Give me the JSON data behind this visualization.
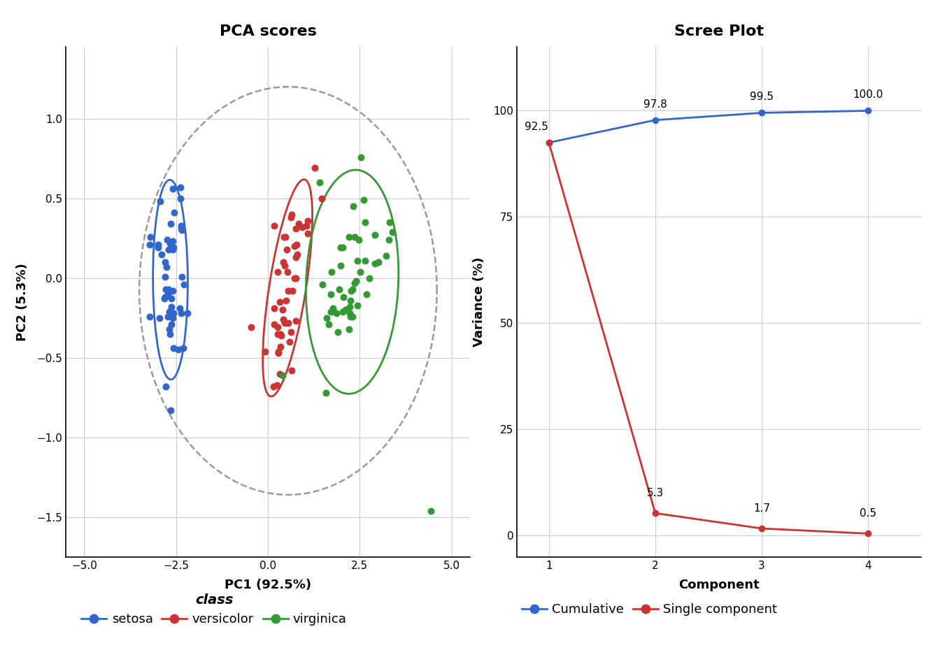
{
  "pca_title": "PCA scores",
  "scree_title": "Scree Plot",
  "pca_xlabel": "PC1 (92.5%)",
  "pca_ylabel": "PC2 (5.3%)",
  "scree_xlabel": "Component",
  "scree_ylabel": "Variance (%)",
  "pca_xlim": [
    -5.5,
    5.5
  ],
  "pca_ylim": [
    -1.75,
    1.45
  ],
  "scree_xlim": [
    0.7,
    4.5
  ],
  "scree_ylim": [
    -5,
    115
  ],
  "class_colors": {
    "setosa": "#3366CC",
    "versicolor": "#CC3333",
    "virginica": "#339933"
  },
  "cumulative": [
    92.5,
    97.8,
    99.5,
    100.0
  ],
  "single": [
    92.5,
    5.3,
    1.7,
    0.5
  ],
  "components": [
    1,
    2,
    3,
    4
  ],
  "cumulative_color": "#3366CC",
  "single_color": "#CC3333",
  "scree_yticks": [
    0,
    25,
    50,
    75,
    100
  ],
  "background_color": "#ffffff",
  "grid_color": "#cccccc",
  "setosa_points_x": [
    -2.68,
    -2.71,
    -2.89,
    -2.37,
    -2.78,
    -2.68,
    -2.79,
    -2.57,
    -2.98,
    -2.93,
    -2.4,
    -2.63,
    -2.82,
    -3.22,
    -2.98,
    -2.37,
    -2.67,
    -2.67,
    -2.3,
    -2.63,
    -2.35,
    -2.74,
    -3.21,
    -2.19,
    -2.58,
    -2.44,
    -2.58,
    -2.57,
    -2.55,
    -2.8,
    -2.58,
    -2.37,
    -2.59,
    -2.38,
    -2.7,
    -2.28,
    -2.34,
    -2.77,
    -2.96,
    -2.59,
    -2.64,
    -3.2,
    -2.64,
    -2.38,
    -2.62,
    -2.79,
    -2.57,
    -2.73,
    -2.78,
    -2.73
  ],
  "setosa_points_y": [
    -0.32,
    0.18,
    0.15,
    0.31,
    -0.07,
    -0.21,
    0.01,
    -0.44,
    0.19,
    0.48,
    -0.19,
    -0.29,
    -0.13,
    -0.24,
    0.21,
    -0.22,
    -0.35,
    0.22,
    -0.44,
    -0.13,
    0.01,
    0.24,
    0.21,
    -0.22,
    0.18,
    -0.45,
    -0.08,
    -0.22,
    0.41,
    -0.12,
    -0.25,
    0.33,
    0.56,
    0.5,
    -0.07,
    -0.04,
    0.3,
    0.07,
    -0.25,
    0.23,
    0.34,
    0.26,
    -0.83,
    0.57,
    -0.18,
    0.1,
    0.19,
    -0.1,
    -0.68,
    -0.24
  ],
  "versicolor_points_x": [
    1.28,
    0.93,
    1.46,
    0.18,
    1.08,
    0.64,
    1.09,
    -0.45,
    1.04,
    0.73,
    0.59,
    0.49,
    0.77,
    0.63,
    0.36,
    0.32,
    0.66,
    0.28,
    0.8,
    0.27,
    0.56,
    0.55,
    0.83,
    0.73,
    0.39,
    0.16,
    0.53,
    0.76,
    0.51,
    0.26,
    0.17,
    0.32,
    0.17,
    0.45,
    0.77,
    0.27,
    0.24,
    0.78,
    0.46,
    0.42,
    -0.08,
    0.63,
    0.47,
    0.28,
    0.35,
    0.34,
    0.64,
    0.77,
    0.41,
    0.43
  ],
  "versicolor_points_y": [
    0.69,
    0.32,
    0.5,
    -0.19,
    0.36,
    -0.58,
    0.28,
    -0.31,
    0.33,
    0.2,
    -0.4,
    -0.14,
    0.0,
    -0.34,
    -0.36,
    -0.6,
    -0.08,
    -0.47,
    0.15,
    -0.35,
    -0.28,
    -0.08,
    0.34,
    0.0,
    -0.2,
    -0.68,
    0.04,
    -0.27,
    0.18,
    0.04,
    -0.29,
    -0.15,
    0.33,
    0.08,
    0.13,
    -0.31,
    -0.67,
    0.21,
    -0.28,
    0.1,
    -0.46,
    0.38,
    0.26,
    -0.46,
    -0.43,
    -0.35,
    0.4,
    0.31,
    -0.26,
    0.26
  ],
  "virginica_points_x": [
    2.53,
    1.41,
    2.61,
    1.97,
    2.35,
    3.39,
    0.4,
    2.92,
    2.32,
    2.91,
    2.43,
    1.94,
    2.2,
    1.6,
    1.9,
    2.25,
    2.76,
    3.22,
    2.3,
    1.58,
    2.64,
    1.72,
    1.97,
    2.04,
    2.25,
    2.3,
    2.03,
    1.65,
    1.87,
    2.51,
    2.43,
    3.3,
    3.0,
    2.05,
    1.72,
    1.48,
    1.77,
    2.11,
    1.73,
    2.22,
    2.39,
    2.27,
    2.35,
    2.47,
    4.43,
    3.31,
    2.64,
    2.21,
    2.69,
    2.22
  ],
  "virginica_points_y": [
    0.76,
    0.6,
    0.49,
    0.19,
    -0.03,
    0.29,
    -0.61,
    0.27,
    0.45,
    0.09,
    -0.17,
    -0.07,
    -0.32,
    -0.25,
    -0.34,
    -0.24,
    0.0,
    0.14,
    -0.24,
    -0.72,
    0.35,
    -0.21,
    0.08,
    -0.21,
    -0.14,
    -0.07,
    0.19,
    -0.29,
    -0.22,
    0.04,
    0.11,
    0.24,
    0.1,
    -0.12,
    -0.1,
    -0.04,
    -0.19,
    -0.2,
    0.04,
    -0.22,
    -0.02,
    -0.08,
    0.26,
    0.24,
    -1.46,
    0.35,
    0.11,
    0.26,
    -0.1,
    -0.18
  ]
}
